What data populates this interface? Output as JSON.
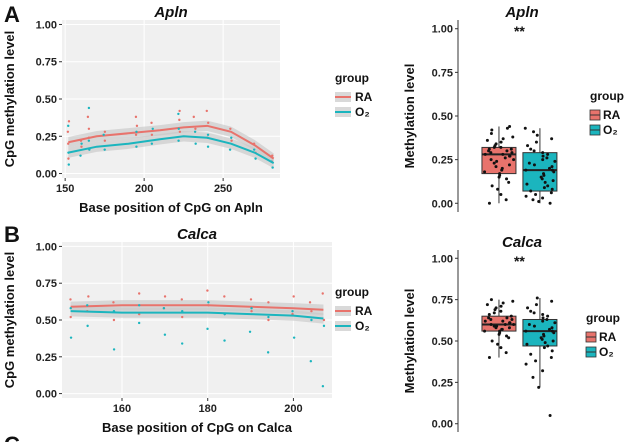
{
  "figure": {
    "panel_letters": [
      "A",
      "B",
      "C"
    ],
    "colors": {
      "RA": "#E8736C",
      "O2": "#1BB5BE",
      "grid": "#ebebeb",
      "panel_bg": "#f0f0f0",
      "ribbon": "#c8c8c8"
    }
  },
  "chart_data": [
    {
      "id": "A-line",
      "type": "scatter",
      "title": "Apln",
      "xlabel": "Base position of CpG on Apln",
      "ylabel": "CpG methylation level",
      "xlim": [
        148,
        286
      ],
      "ylim": [
        -0.03,
        1.03
      ],
      "xticks": [
        150,
        200,
        250
      ],
      "yticks": [
        0.0,
        0.25,
        0.5,
        0.75,
        1.0
      ],
      "ytick_labels": [
        "0.00",
        "0.25",
        "0.50",
        "0.75",
        "1.00"
      ],
      "legend_title": "group",
      "legend_labels": [
        "RA",
        "O₂"
      ],
      "series": [
        {
          "name": "RA",
          "color": "#E8736C",
          "smooth_x": [
            152,
            170,
            190,
            210,
            225,
            240,
            255,
            270,
            282
          ],
          "smooth_y": [
            0.21,
            0.25,
            0.27,
            0.29,
            0.31,
            0.32,
            0.28,
            0.19,
            0.1
          ],
          "points_x": [
            152,
            152,
            152,
            152,
            160,
            160,
            165,
            165,
            165,
            175,
            175,
            195,
            195,
            195,
            205,
            205,
            222,
            222,
            222,
            232,
            232,
            240,
            240,
            240,
            255,
            255,
            270,
            270,
            281,
            281
          ],
          "points_y": [
            0.1,
            0.2,
            0.28,
            0.35,
            0.18,
            0.22,
            0.24,
            0.3,
            0.38,
            0.22,
            0.28,
            0.26,
            0.32,
            0.38,
            0.26,
            0.34,
            0.28,
            0.36,
            0.42,
            0.3,
            0.38,
            0.24,
            0.34,
            0.42,
            0.22,
            0.3,
            0.14,
            0.2,
            0.08,
            0.12
          ]
        },
        {
          "name": "O₂",
          "color": "#1BB5BE",
          "smooth_x": [
            152,
            170,
            190,
            210,
            225,
            240,
            255,
            270,
            282
          ],
          "smooth_y": [
            0.14,
            0.18,
            0.2,
            0.23,
            0.25,
            0.24,
            0.2,
            0.14,
            0.07
          ],
          "points_x": [
            152,
            152,
            152,
            160,
            160,
            165,
            165,
            165,
            175,
            175,
            195,
            195,
            205,
            205,
            222,
            222,
            222,
            232,
            232,
            240,
            240,
            255,
            255,
            270,
            270,
            281,
            281
          ],
          "points_y": [
            0.06,
            0.14,
            0.32,
            0.12,
            0.2,
            0.16,
            0.22,
            0.44,
            0.16,
            0.26,
            0.18,
            0.28,
            0.2,
            0.3,
            0.22,
            0.3,
            0.4,
            0.2,
            0.28,
            0.18,
            0.26,
            0.16,
            0.24,
            0.1,
            0.16,
            0.04,
            0.08
          ]
        }
      ]
    },
    {
      "id": "A-box",
      "type": "box",
      "title": "Apln",
      "ylabel": "Methylation level",
      "ylim": [
        -0.05,
        1.05
      ],
      "yticks": [
        0.0,
        0.25,
        0.5,
        0.75,
        1.0
      ],
      "ytick_labels": [
        "0.00",
        "0.25",
        "0.50",
        "0.75",
        "1.00"
      ],
      "significance": "**",
      "legend_title": "group",
      "legend_labels": [
        "RA",
        "O₂"
      ],
      "groups": [
        {
          "name": "RA",
          "color": "#E8736C",
          "q1": 0.17,
          "median": 0.28,
          "q3": 0.32,
          "whisker_low": 0.0,
          "whisker_high": 0.44,
          "points": [
            0.0,
            0.02,
            0.05,
            0.08,
            0.1,
            0.12,
            0.14,
            0.15,
            0.16,
            0.17,
            0.18,
            0.19,
            0.2,
            0.21,
            0.22,
            0.23,
            0.24,
            0.25,
            0.25,
            0.26,
            0.27,
            0.27,
            0.28,
            0.28,
            0.29,
            0.29,
            0.3,
            0.3,
            0.31,
            0.31,
            0.32,
            0.32,
            0.33,
            0.34,
            0.35,
            0.36,
            0.37,
            0.38,
            0.4,
            0.42,
            0.43,
            0.44
          ]
        },
        {
          "name": "O₂",
          "color": "#1BB5BE",
          "q1": 0.07,
          "median": 0.19,
          "q3": 0.29,
          "whisker_low": 0.0,
          "whisker_high": 0.43,
          "points": [
            0.0,
            0.01,
            0.02,
            0.03,
            0.04,
            0.05,
            0.06,
            0.07,
            0.08,
            0.09,
            0.1,
            0.11,
            0.12,
            0.13,
            0.14,
            0.15,
            0.16,
            0.17,
            0.18,
            0.19,
            0.19,
            0.2,
            0.21,
            0.22,
            0.23,
            0.24,
            0.25,
            0.26,
            0.27,
            0.28,
            0.29,
            0.3,
            0.31,
            0.33,
            0.35,
            0.37,
            0.39,
            0.41,
            0.43
          ]
        }
      ]
    },
    {
      "id": "B-line",
      "type": "scatter",
      "title": "Calca",
      "xlabel": "Base position of CpG on Calca",
      "ylabel": "CpG methylation level",
      "xlim": [
        146,
        209
      ],
      "ylim": [
        -0.03,
        1.03
      ],
      "xticks": [
        160,
        180,
        200
      ],
      "yticks": [
        0.0,
        0.25,
        0.5,
        0.75,
        1.0
      ],
      "ytick_labels": [
        "0.00",
        "0.25",
        "0.50",
        "0.75",
        "1.00"
      ],
      "legend_title": "group",
      "legend_labels": [
        "RA",
        "O₂"
      ],
      "series": [
        {
          "name": "RA",
          "color": "#E8736C",
          "smooth_x": [
            148,
            160,
            170,
            180,
            190,
            200,
            207
          ],
          "smooth_y": [
            0.59,
            0.6,
            0.6,
            0.6,
            0.59,
            0.58,
            0.57
          ],
          "points_x": [
            148,
            148,
            152,
            152,
            158,
            158,
            164,
            164,
            170,
            170,
            174,
            174,
            180,
            180,
            184,
            184,
            190,
            190,
            194,
            194,
            200,
            200,
            204,
            204,
            207,
            207
          ],
          "points_y": [
            0.52,
            0.64,
            0.56,
            0.66,
            0.5,
            0.62,
            0.54,
            0.68,
            0.58,
            0.66,
            0.52,
            0.64,
            0.6,
            0.7,
            0.54,
            0.66,
            0.56,
            0.64,
            0.5,
            0.62,
            0.54,
            0.66,
            0.56,
            0.62,
            0.5,
            0.68
          ]
        },
        {
          "name": "O₂",
          "color": "#1BB5BE",
          "smooth_x": [
            148,
            160,
            170,
            180,
            190,
            200,
            207
          ],
          "smooth_y": [
            0.56,
            0.55,
            0.55,
            0.55,
            0.54,
            0.53,
            0.51
          ],
          "points_x": [
            148,
            148,
            152,
            152,
            158,
            158,
            164,
            164,
            170,
            170,
            174,
            174,
            180,
            180,
            184,
            184,
            190,
            190,
            194,
            194,
            200,
            200,
            204,
            204,
            207,
            207
          ],
          "points_y": [
            0.38,
            0.58,
            0.46,
            0.6,
            0.3,
            0.56,
            0.48,
            0.6,
            0.4,
            0.58,
            0.34,
            0.56,
            0.44,
            0.62,
            0.36,
            0.54,
            0.42,
            0.58,
            0.28,
            0.52,
            0.38,
            0.56,
            0.22,
            0.5,
            0.05,
            0.46
          ]
        }
      ]
    },
    {
      "id": "B-box",
      "type": "box",
      "title": "Calca",
      "ylabel": "Methylation level",
      "ylim": [
        -0.05,
        1.05
      ],
      "yticks": [
        0.0,
        0.25,
        0.5,
        0.75,
        1.0
      ],
      "ytick_labels": [
        "0.00",
        "0.25",
        "0.50",
        "0.75",
        "1.00"
      ],
      "significance": "**",
      "legend_title": "group",
      "legend_labels": [
        "RA",
        "O₂"
      ],
      "groups": [
        {
          "name": "RA",
          "color": "#E8736C",
          "q1": 0.56,
          "median": 0.6,
          "q3": 0.65,
          "whisker_low": 0.4,
          "whisker_high": 0.75,
          "points": [
            0.4,
            0.43,
            0.46,
            0.48,
            0.5,
            0.52,
            0.53,
            0.54,
            0.55,
            0.56,
            0.56,
            0.57,
            0.57,
            0.58,
            0.58,
            0.59,
            0.59,
            0.6,
            0.6,
            0.6,
            0.61,
            0.61,
            0.62,
            0.62,
            0.63,
            0.63,
            0.64,
            0.64,
            0.65,
            0.66,
            0.67,
            0.68,
            0.69,
            0.7,
            0.71,
            0.72,
            0.73,
            0.74,
            0.75
          ]
        },
        {
          "name": "O₂",
          "color": "#1BB5BE",
          "q1": 0.47,
          "median": 0.56,
          "q3": 0.63,
          "whisker_low": 0.22,
          "whisker_high": 0.76,
          "points": [
            0.05,
            0.22,
            0.28,
            0.32,
            0.36,
            0.38,
            0.4,
            0.42,
            0.44,
            0.46,
            0.47,
            0.48,
            0.49,
            0.5,
            0.51,
            0.52,
            0.53,
            0.54,
            0.55,
            0.56,
            0.56,
            0.57,
            0.58,
            0.59,
            0.6,
            0.61,
            0.62,
            0.63,
            0.64,
            0.65,
            0.66,
            0.67,
            0.68,
            0.7,
            0.72,
            0.74,
            0.76
          ]
        }
      ]
    }
  ]
}
